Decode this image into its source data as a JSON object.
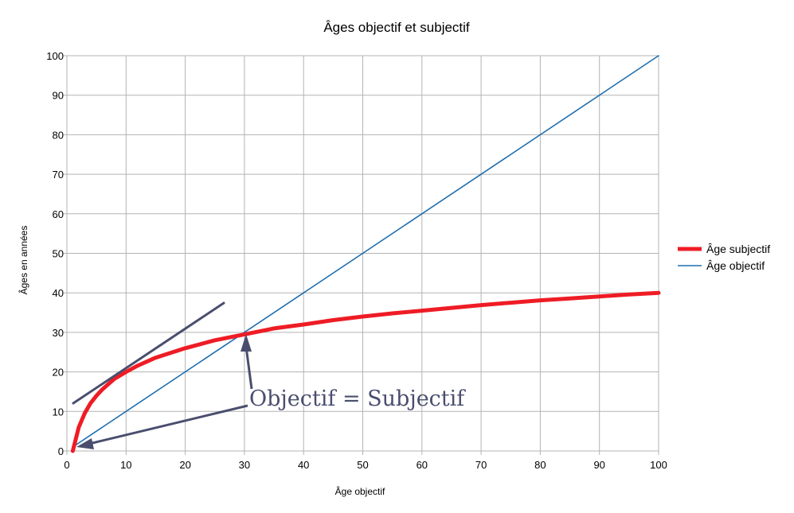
{
  "chart_data": {
    "type": "line",
    "title": "Âges objectif et subjectif",
    "xlabel": "Âge objectif",
    "ylabel": "Âges en années",
    "xlim": [
      0,
      100
    ],
    "ylim": [
      0,
      100
    ],
    "xticks": [
      "0",
      "10",
      "20",
      "30",
      "40",
      "50",
      "60",
      "70",
      "80",
      "90",
      "100"
    ],
    "yticks": [
      "0",
      "10",
      "20",
      "30",
      "40",
      "50",
      "60",
      "70",
      "80",
      "90",
      "100"
    ],
    "grid": true,
    "legend_position": "right",
    "series": [
      {
        "name": "Âge subjectif",
        "color": "#ee1c25",
        "x": [
          1,
          2,
          3,
          4,
          5,
          6,
          8,
          10,
          12,
          15,
          20,
          25,
          30,
          35,
          40,
          45,
          50,
          55,
          60,
          65,
          70,
          75,
          80,
          85,
          90,
          95,
          100
        ],
        "y": [
          0,
          6,
          9.5,
          12.1,
          14.0,
          15.6,
          18.2,
          20.0,
          21.6,
          23.6,
          26.0,
          28.0,
          29.5,
          31.0,
          32.0,
          33.1,
          34.0,
          34.8,
          35.5,
          36.2,
          36.9,
          37.5,
          38.1,
          38.6,
          39.1,
          39.6,
          40.0
        ]
      },
      {
        "name": "Âge objectif",
        "color": "#1f6fb0",
        "x": [
          1,
          100
        ],
        "y": [
          1,
          100
        ]
      }
    ],
    "annotations": [
      {
        "text": "Objectif = Subjectif",
        "color": "#4a4e6e"
      }
    ]
  }
}
